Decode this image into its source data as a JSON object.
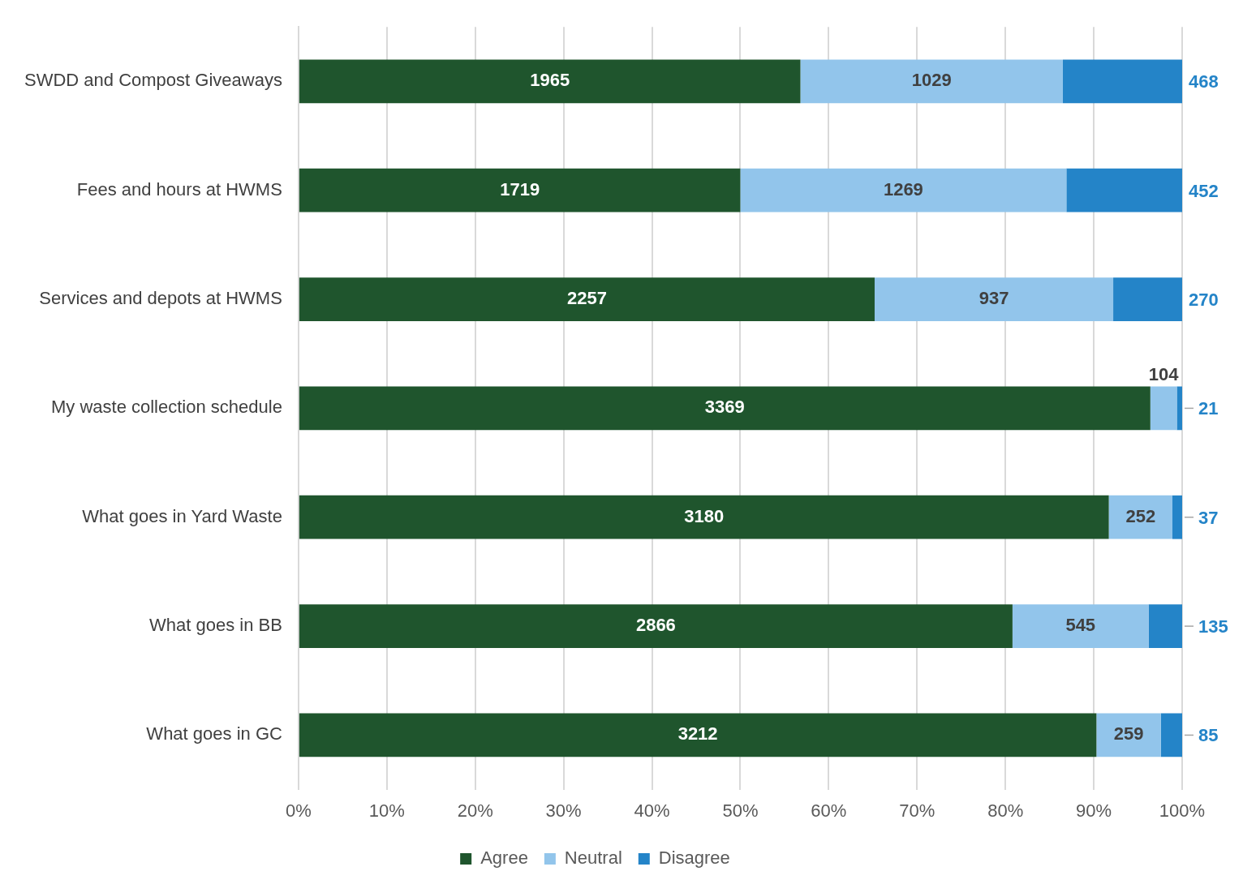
{
  "chart_data": {
    "type": "bar",
    "orientation": "horizontal",
    "stacked": true,
    "categories": [
      "SWDD and Compost Giveaways",
      "Fees and hours at HWMS",
      "Services and depots at HWMS",
      "My waste collection schedule",
      "What goes in Yard Waste",
      "What goes in BB",
      "What goes in GC"
    ],
    "series": [
      {
        "name": "Agree",
        "color": "#1f552d",
        "values": [
          56.8,
          50.0,
          65.2,
          96.4,
          91.7,
          80.8,
          90.3
        ]
      },
      {
        "name": "Neutral",
        "color": "#92c5eb",
        "values": [
          29.7,
          36.9,
          27.0,
          3.0,
          7.2,
          15.4,
          7.3
        ]
      },
      {
        "name": "Disagree",
        "color": "#2484c8",
        "values": [
          13.5,
          13.1,
          7.8,
          0.6,
          1.1,
          3.8,
          2.4
        ]
      }
    ],
    "annotations": [
      "1965",
      "1029",
      "468",
      "1719",
      "1269",
      "452",
      "2257",
      "937",
      "270",
      "3369",
      "104",
      "21",
      "3180",
      "252",
      "37",
      "2866",
      "545",
      "135",
      "3212",
      "259",
      "85"
    ],
    "xlim": [
      0,
      100
    ],
    "xticks": [
      {
        "value": 0,
        "label": "0%"
      },
      {
        "value": 10,
        "label": "10%"
      },
      {
        "value": 20,
        "label": "20%"
      },
      {
        "value": 30,
        "label": "30%"
      },
      {
        "value": 40,
        "label": "40%"
      },
      {
        "value": 50,
        "label": "50%"
      },
      {
        "value": 60,
        "label": "60%"
      },
      {
        "value": 70,
        "label": "70%"
      },
      {
        "value": 80,
        "label": "80%"
      },
      {
        "value": 90,
        "label": "90%"
      },
      {
        "value": 100,
        "label": "100%"
      }
    ],
    "grid": "x",
    "legend": "bottom"
  }
}
